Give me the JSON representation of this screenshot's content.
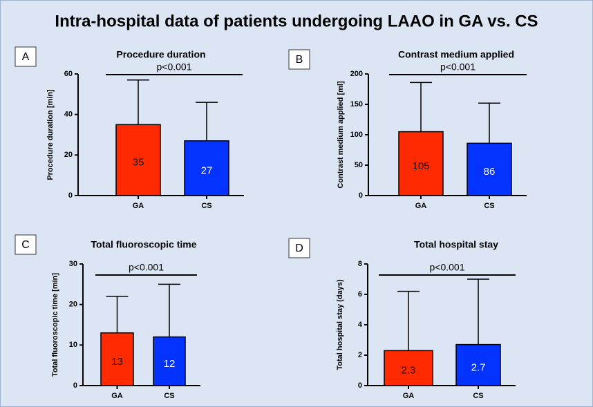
{
  "title": "Intra-hospital data of patients undergoing LAAO in GA vs. CS",
  "chart_data": [
    {
      "type": "bar",
      "panel": "A",
      "title": "Procedure duration",
      "annotation": "p<0.001",
      "ylabel": "Procedure duration [min]",
      "categories": [
        "GA",
        "CS"
      ],
      "values": [
        35,
        27
      ],
      "errors": [
        22,
        19
      ],
      "colors": [
        "#ff2a00",
        "#0433ff"
      ],
      "ylim": [
        0,
        60
      ],
      "yticks": [
        0,
        20,
        40,
        60
      ]
    },
    {
      "type": "bar",
      "panel": "B",
      "title": "Contrast medium applied",
      "annotation": "p<0.001",
      "ylabel": "Contrast medium applied [ml]",
      "categories": [
        "GA",
        "CS"
      ],
      "values": [
        105,
        86
      ],
      "errors": [
        81,
        66
      ],
      "colors": [
        "#ff2a00",
        "#0433ff"
      ],
      "ylim": [
        0,
        200
      ],
      "yticks": [
        0,
        50,
        100,
        150,
        200
      ]
    },
    {
      "type": "bar",
      "panel": "C",
      "title": "Total fluoroscopic time",
      "annotation": "p<0.001",
      "ylabel": "Total fluoroscopic time [min]",
      "categories": [
        "GA",
        "CS"
      ],
      "values": [
        13,
        12
      ],
      "errors": [
        9,
        13
      ],
      "colors": [
        "#ff2a00",
        "#0433ff"
      ],
      "ylim": [
        0,
        30
      ],
      "yticks": [
        0,
        10,
        20,
        30
      ]
    },
    {
      "type": "bar",
      "panel": "D",
      "title": "Total hospital stay",
      "annotation": "p<0.001",
      "ylabel": "Total hospital stay (days)",
      "categories": [
        "GA",
        "CS"
      ],
      "values": [
        2.3,
        2.7
      ],
      "errors": [
        3.9,
        4.3
      ],
      "colors": [
        "#ff2a00",
        "#0433ff"
      ],
      "ylim": [
        0,
        8
      ],
      "yticks": [
        0,
        2,
        4,
        6,
        8
      ]
    }
  ]
}
